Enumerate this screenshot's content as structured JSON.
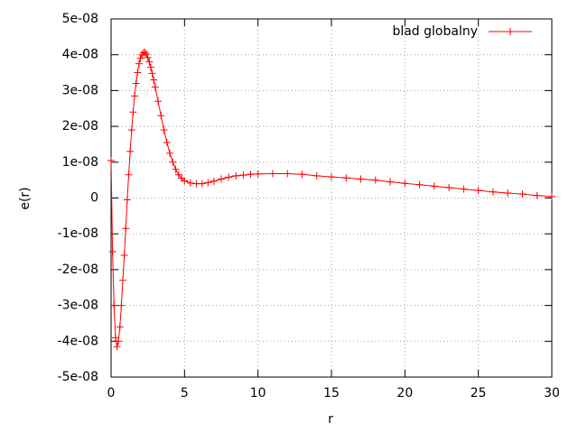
{
  "chart_data": {
    "type": "line",
    "x_label": "r",
    "y_label": "e(r)",
    "x": [
      0,
      0.1,
      0.2,
      0.3,
      0.4,
      0.5,
      0.6,
      0.7,
      0.8,
      0.9,
      1.0,
      1.1,
      1.2,
      1.3,
      1.4,
      1.5,
      1.6,
      1.7,
      1.8,
      1.9,
      2.0,
      2.1,
      2.2,
      2.3,
      2.4,
      2.5,
      2.6,
      2.7,
      2.8,
      2.9,
      3.0,
      3.2,
      3.4,
      3.6,
      3.8,
      4.0,
      4.2,
      4.4,
      4.6,
      4.8,
      5.0,
      5.4,
      5.8,
      6.2,
      6.6,
      7.0,
      7.5,
      8,
      8.5,
      9,
      9.5,
      10,
      11,
      12,
      13,
      14,
      15,
      16,
      17,
      18,
      19,
      20,
      21,
      22,
      23,
      24,
      25,
      26,
      27,
      28,
      29,
      30
    ],
    "series": [
      {
        "name": "blad globalny",
        "color": "#ff0000",
        "values": [
          1.05e-08,
          -1.5e-08,
          -3e-08,
          -3.9e-08,
          -4.15e-08,
          -4e-08,
          -3.6e-08,
          -3e-08,
          -2.3e-08,
          -1.6e-08,
          -8.5e-09,
          -5e-10,
          6.5e-09,
          1.3e-08,
          1.9e-08,
          2.4e-08,
          2.85e-08,
          3.2e-08,
          3.5e-08,
          3.75e-08,
          3.9e-08,
          4e-08,
          4.06e-08,
          4.07e-08,
          4.02e-08,
          3.92e-08,
          3.8e-08,
          3.65e-08,
          3.48e-08,
          3.3e-08,
          3.1e-08,
          2.7e-08,
          2.3e-08,
          1.9e-08,
          1.55e-08,
          1.25e-08,
          1e-08,
          8e-09,
          6.5e-09,
          5.5e-09,
          4.8e-09,
          4.2e-09,
          4e-09,
          4e-09,
          4.3e-09,
          4.7e-09,
          5.3e-09,
          5.8e-09,
          6.2e-09,
          6.4e-09,
          6.6e-09,
          6.7e-09,
          6.8e-09,
          6.8e-09,
          6.6e-09,
          6.2e-09,
          5.9e-09,
          5.6e-09,
          5.3e-09,
          5e-09,
          4.5e-09,
          4.1e-09,
          3.7e-09,
          3.3e-09,
          2.9e-09,
          2.5e-09,
          2.1e-09,
          1.7e-09,
          1.4e-09,
          1.1e-09,
          7e-10,
          4e-10
        ]
      }
    ],
    "xlim": [
      0,
      30
    ],
    "xticks": [
      0,
      5,
      10,
      15,
      20,
      25,
      30
    ],
    "ylim": [
      -5e-08,
      5e-08
    ],
    "yticks": [
      {
        "value": -5e-08,
        "label": "-5e-08"
      },
      {
        "value": -4e-08,
        "label": "-4e-08"
      },
      {
        "value": -3e-08,
        "label": "-3e-08"
      },
      {
        "value": -2e-08,
        "label": "-2e-08"
      },
      {
        "value": -1e-08,
        "label": "-1e-08"
      },
      0,
      {
        "value": 1e-08,
        "label": "1e-08"
      },
      {
        "value": 2e-08,
        "label": "2e-08"
      },
      {
        "value": 3e-08,
        "label": "3e-08"
      },
      {
        "value": 4e-08,
        "label": "4e-08"
      },
      {
        "value": 5e-08,
        "label": "5e-08"
      }
    ],
    "grid": true,
    "legend": "top-right"
  }
}
